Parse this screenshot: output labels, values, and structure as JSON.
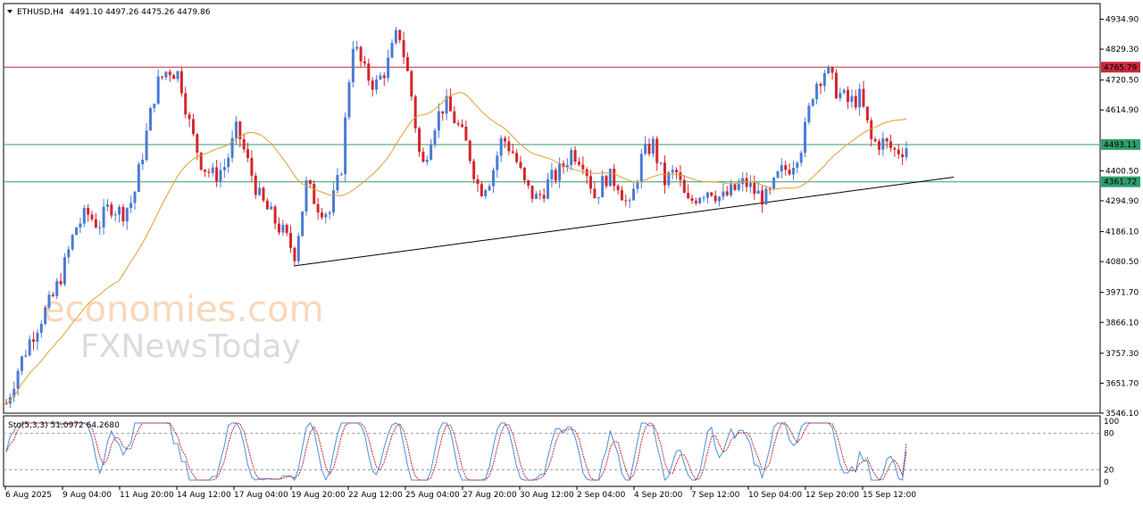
{
  "header": {
    "symbol": "ETHUSD,H4",
    "ohlc": "4491.10 4497.26 4475.26 4479.86"
  },
  "watermark": {
    "line1": "economies.com",
    "line2": "FXNewsToday",
    "color1": "#f5c9a3",
    "color2": "#bdbdbd"
  },
  "colors": {
    "bull": "#4a7bd5",
    "bear": "#d4262b",
    "ma": "#e0a030",
    "resistance": "#c8283a",
    "support": "#2e9e6e",
    "trendline": "#000000",
    "stoch_main": "#4a90d9",
    "stoch_signal": "#c0283a"
  },
  "chart_data": {
    "type": "candlestick",
    "symbol": "ETHUSD",
    "timeframe": "H4",
    "ylim": [
      3546,
      4990
    ],
    "y_ticks": [
      "4934.90",
      "4829.30",
      "4720.50",
      "4614.90",
      "4400.50",
      "4294.90",
      "4186.10",
      "4080.50",
      "3971.70",
      "3866.10",
      "3757.30",
      "3651.70",
      "3546.10"
    ],
    "x_ticks": [
      "6 Aug 2025",
      "9 Aug 04:00",
      "11 Aug 20:00",
      "14 Aug 12:00",
      "17 Aug 04:00",
      "19 Aug 20:00",
      "22 Aug 12:00",
      "25 Aug 04:00",
      "27 Aug 20:00",
      "30 Aug 12:00",
      "2 Sep 04:00",
      "4 Sep 20:00",
      "7 Sep 12:00",
      "10 Sep 04:00",
      "12 Sep 20:00",
      "15 Sep 12:00"
    ],
    "levels": [
      {
        "value": 4765.79,
        "label": "4765.79",
        "color": "#c8283a"
      },
      {
        "value": 4493.11,
        "label": "4493.11",
        "color": "#2e9e6e"
      },
      {
        "value": 4361.72,
        "label": "4361.72",
        "color": "#2e9e6e"
      }
    ],
    "current_price": 4479.86,
    "price_path": [
      3580,
      3700,
      3800,
      3880,
      3950,
      4060,
      4200,
      4250,
      4210,
      4280,
      4250,
      4300,
      4500,
      4700,
      4760,
      4740,
      4540,
      4420,
      4380,
      4420,
      4550,
      4420,
      4300,
      4240,
      4180,
      4110,
      4350,
      4280,
      4250,
      4400,
      4860,
      4750,
      4700,
      4770,
      4900,
      4700,
      4400,
      4560,
      4640,
      4570,
      4480,
      4330,
      4380,
      4520,
      4460,
      4340,
      4300,
      4360,
      4400,
      4470,
      4440,
      4310,
      4380,
      4360,
      4260,
      4440,
      4500,
      4360,
      4400,
      4280,
      4320,
      4340,
      4300,
      4330,
      4360,
      4320,
      4300,
      4390,
      4420,
      4500,
      4700,
      4760,
      4680,
      4640,
      4660,
      4500,
      4500,
      4470,
      4480
    ],
    "stochastic": {
      "label": "Sto(5,3,3) 51.0972 64.2680",
      "main": 51.0972,
      "signal": 64.268,
      "levels": [
        20,
        80
      ],
      "ticks": [
        "100",
        "80",
        "20",
        "0"
      ]
    }
  }
}
